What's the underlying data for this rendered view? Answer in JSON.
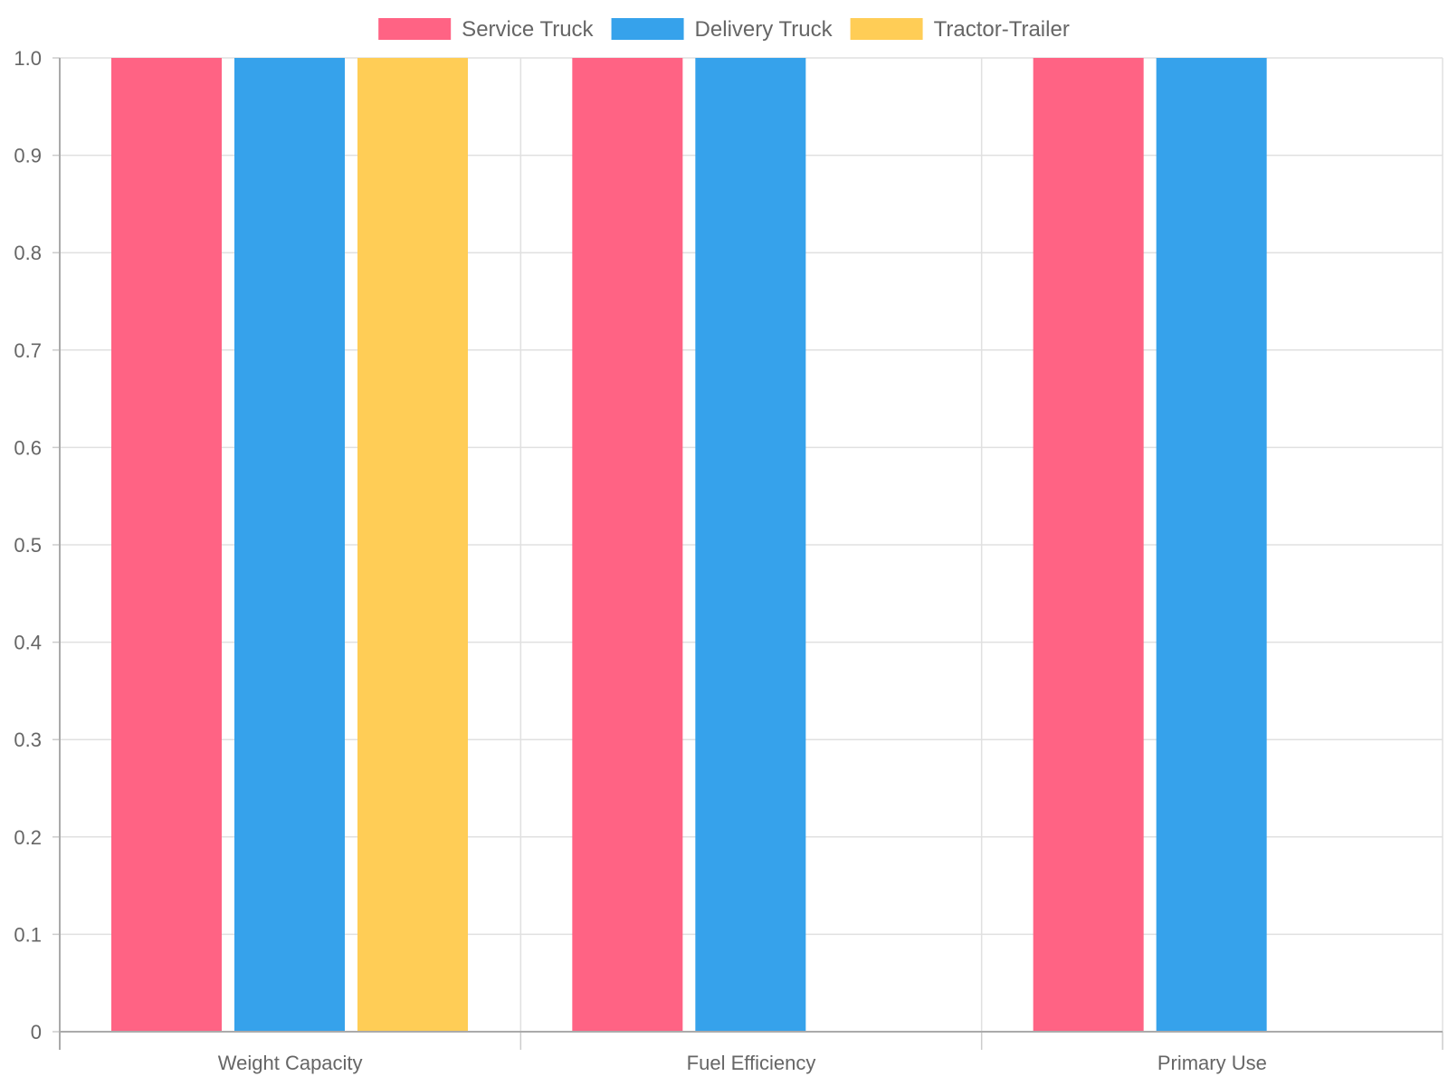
{
  "chart_data": {
    "type": "bar",
    "categories": [
      "Weight Capacity",
      "Fuel Efficiency",
      "Primary Use"
    ],
    "series": [
      {
        "name": "Service Truck",
        "color": "#ff6384",
        "values": [
          1,
          1,
          1
        ]
      },
      {
        "name": "Delivery Truck",
        "color": "#36a2eb",
        "values": [
          1,
          1,
          1
        ]
      },
      {
        "name": "Tractor-Trailer",
        "color": "#ffcd56",
        "values": [
          1,
          0,
          0
        ]
      }
    ],
    "ylim": [
      0,
      1
    ],
    "yticks": [
      "0",
      "0.1",
      "0.2",
      "0.3",
      "0.4",
      "0.5",
      "0.6",
      "0.7",
      "0.8",
      "0.9",
      "1.0"
    ],
    "grid": true,
    "legend_position": "top"
  }
}
